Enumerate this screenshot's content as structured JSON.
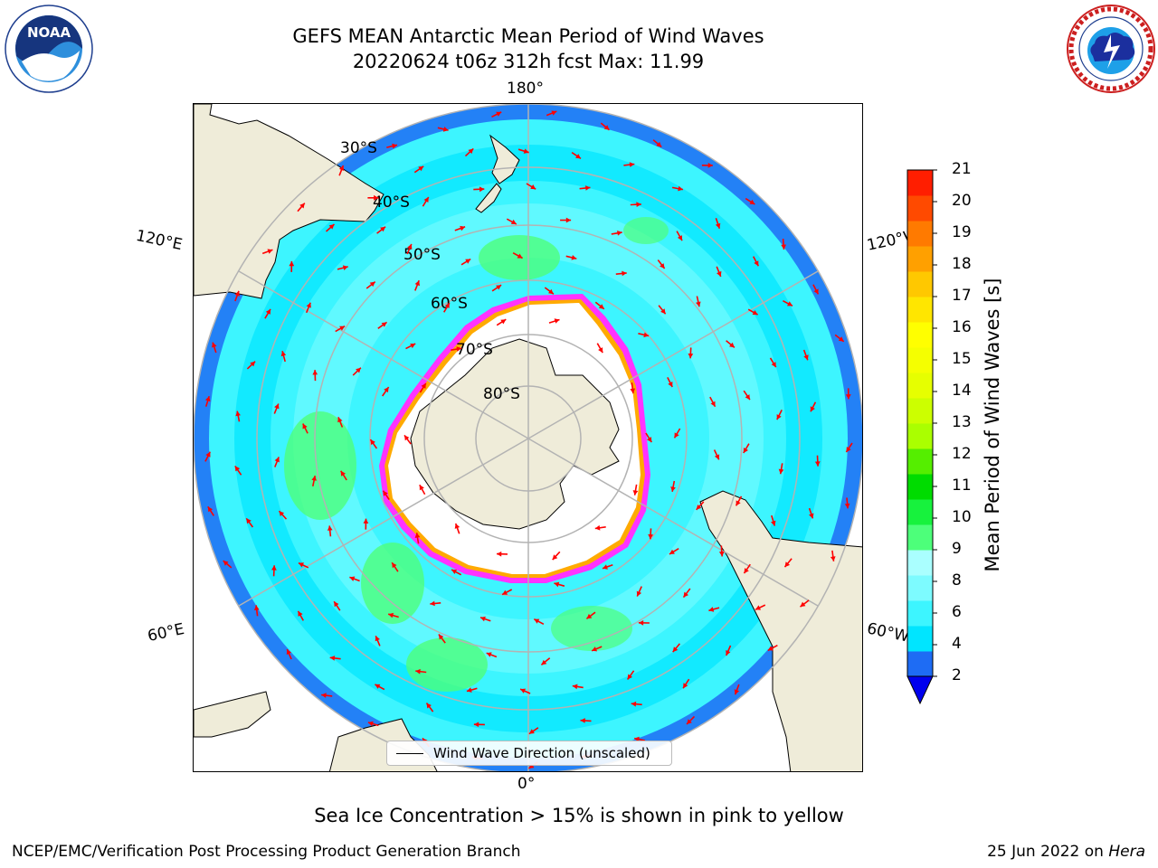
{
  "header": {
    "title_line1": "GEFS MEAN Antarctic Mean Period of Wind Waves",
    "title_line2": "20220624 t06z 312h fcst   Max: 11.99"
  },
  "logos": {
    "left": {
      "name": "noaa-logo",
      "text": "NOAA",
      "ring_text": "NATIONAL OCEANIC AND ATMOSPHERIC ADMINISTRATION · U.S. DEPARTMENT OF COMMERCE"
    },
    "right": {
      "name": "nws-logo",
      "ring_text": "NATIONAL WEATHER SERVICE"
    }
  },
  "map": {
    "projection": "south-polar-stereographic",
    "longitude_labels": [
      "180°",
      "120°E",
      "120°W",
      "60°E",
      "60°W",
      "0°"
    ],
    "latitude_labels": [
      "30°S",
      "40°S",
      "50°S",
      "60°S",
      "70°S",
      "80°S"
    ],
    "colors": {
      "land": "#efecd9",
      "ice_free": "#ffffff",
      "ice_edge": [
        "#ff33ff",
        "#ffaa00"
      ],
      "gridline": "#b3b3b3",
      "arrow": "#ff0000"
    },
    "legend": {
      "label": "Wind Wave Direction (unscaled)"
    }
  },
  "colorbar": {
    "label": "Mean Period of Wind Waves [s]",
    "ticks": [
      "21",
      "20",
      "19",
      "18",
      "17",
      "16",
      "15",
      "14",
      "13",
      "12",
      "11",
      "10",
      "9",
      "8",
      "6",
      "4",
      "2"
    ],
    "bounds": [
      2,
      4,
      6,
      7,
      8,
      9,
      10,
      10.5,
      11,
      12,
      12.5,
      13,
      14,
      15,
      15.5,
      16,
      17,
      18,
      19,
      20,
      21
    ],
    "colors": [
      "#1e6cf4",
      "#00e5ff",
      "#3df5ff",
      "#7dfbff",
      "#aaffff",
      "#4dff7a",
      "#17f23d",
      "#00dc00",
      "#55ee00",
      "#aaff00",
      "#ccff00",
      "#e6ff00",
      "#f5ff00",
      "#ffff00",
      "#ffe600",
      "#ffc800",
      "#ffa000",
      "#ff7a00",
      "#ff4a00",
      "#ff1e00"
    ],
    "under_color": "#0000ee"
  },
  "footer": {
    "note": "Sea Ice Concentration > 15% is shown in pink to yellow",
    "left": "NCEP/EMC/Verification Post Processing Product Generation Branch",
    "right_date": "25 Jun 2022 on ",
    "right_host": "Hera"
  }
}
